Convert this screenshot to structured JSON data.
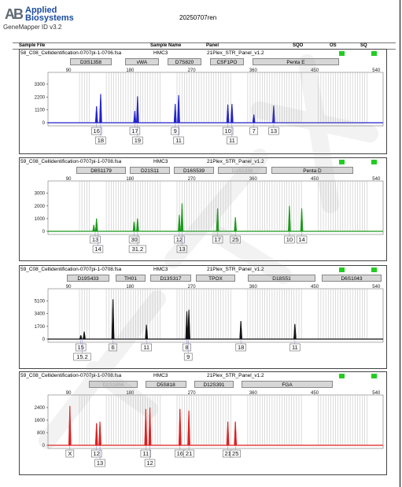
{
  "header": {
    "logo_mark": "AB",
    "logo_line1": "Applied",
    "logo_line2": "Biosystems",
    "app_version": "GeneMapper ID v3.2",
    "run_title": "20250707ren"
  },
  "columns": [
    "Sample File",
    "Sample Name",
    "Panel",
    "SQO",
    "OS",
    "SQ"
  ],
  "colors": {
    "blue": "#2222cc",
    "green": "#1a9a1a",
    "black": "#111111",
    "red": "#dd1f1f",
    "flag": "#22cc22",
    "marker": "#d7d7d7"
  },
  "x_ticks": [
    "90",
    "180",
    "270",
    "360",
    "450",
    "540"
  ],
  "panels": [
    {
      "sample_file": "58_C08_Cellidentification-0707pi-1-0706.fsa",
      "sample_name": "HMC3",
      "panel": "21Plex_STR_Panel_v1.2",
      "dye_color": "#2222cc",
      "markers": [
        {
          "name": "D3S1358",
          "dim": false
        },
        {
          "name": "vWA",
          "dim": false
        },
        {
          "name": "D7S820",
          "dim": false
        },
        {
          "name": "CSF1PO",
          "dim": false
        },
        {
          "name": "Penta E",
          "dim": false
        }
      ],
      "y_ticks": [
        "3300",
        "2200",
        "1100",
        "0"
      ],
      "chart_data": {
        "type": "electropherogram",
        "xlim": [
          60,
          550
        ],
        "ylim": [
          0,
          3900
        ],
        "peaks": [
          {
            "x": 131,
            "y": 1400
          },
          {
            "x": 137,
            "y": 2450
          },
          {
            "x": 187,
            "y": 1000
          },
          {
            "x": 191,
            "y": 2250
          },
          {
            "x": 246,
            "y": 1600
          },
          {
            "x": 251,
            "y": 2350
          },
          {
            "x": 323,
            "y": 1550
          },
          {
            "x": 329,
            "y": 1600
          },
          {
            "x": 361,
            "y": 700
          },
          {
            "x": 390,
            "y": 1450
          }
        ]
      },
      "allele_rows": [
        [
          {
            "label": "16",
            "x": 131
          },
          {
            "label": "17",
            "x": 187
          },
          {
            "label": "9",
            "x": 246
          },
          {
            "label": "10",
            "x": 323
          },
          {
            "label": "7",
            "x": 361
          },
          {
            "label": "13",
            "x": 390
          }
        ],
        [
          {
            "label": "18",
            "x": 137
          },
          {
            "label": "19",
            "x": 191
          },
          {
            "label": "11",
            "x": 251
          },
          {
            "label": "11",
            "x": 329
          }
        ]
      ]
    },
    {
      "sample_file": "59_C08_Cellidentification-0707pi-1-0708.fsa",
      "sample_name": "HMC3",
      "panel": "21Plex_STR_Panel_v1.2",
      "dye_color": "#1a9a1a",
      "markers": [
        {
          "name": "D8S1179",
          "dim": false
        },
        {
          "name": "D21S11",
          "dim": false
        },
        {
          "name": "D16S539",
          "dim": false
        },
        {
          "name": "D2S1338",
          "dim": true
        },
        {
          "name": "Penta D",
          "dim": false
        }
      ],
      "y_ticks": [
        "3000",
        "2000",
        "1000",
        "0"
      ],
      "chart_data": {
        "type": "electropherogram",
        "xlim": [
          60,
          550
        ],
        "ylim": [
          0,
          3600
        ],
        "peaks": [
          {
            "x": 127,
            "y": 500
          },
          {
            "x": 131,
            "y": 1000
          },
          {
            "x": 186,
            "y": 750
          },
          {
            "x": 191,
            "y": 1000
          },
          {
            "x": 252,
            "y": 1300
          },
          {
            "x": 256,
            "y": 2200
          },
          {
            "x": 308,
            "y": 1800
          },
          {
            "x": 334,
            "y": 1100
          },
          {
            "x": 413,
            "y": 2000
          },
          {
            "x": 431,
            "y": 1800
          }
        ]
      },
      "allele_rows": [
        [
          {
            "label": "13",
            "x": 129
          },
          {
            "label": "30",
            "x": 186
          },
          {
            "label": "12",
            "x": 252
          },
          {
            "label": "17",
            "x": 308
          },
          {
            "label": "25",
            "x": 334
          },
          {
            "label": "10",
            "x": 413
          },
          {
            "label": "14",
            "x": 431
          }
        ],
        [
          {
            "label": "14",
            "x": 133
          },
          {
            "label": "31.2",
            "x": 191
          },
          {
            "label": "13",
            "x": 256
          }
        ]
      ]
    },
    {
      "sample_file": "59_C08_Cellidentification-0707pi-1-0708.fsa",
      "sample_name": "HMC3",
      "panel": "21Plex_STR_Panel_v1.2",
      "dye_color": "#111111",
      "markers": [
        {
          "name": "D19S433",
          "dim": false
        },
        {
          "name": "TH01",
          "dim": false
        },
        {
          "name": "D13S317",
          "dim": false
        },
        {
          "name": "TPOX",
          "dim": false
        },
        {
          "name": "D18S51",
          "dim": false
        },
        {
          "name": "D6S1043",
          "dim": false
        }
      ],
      "y_ticks": [
        "5100",
        "3400",
        "1700",
        "0"
      ],
      "chart_data": {
        "type": "electropherogram",
        "xlim": [
          60,
          550
        ],
        "ylim": [
          0,
          6100
        ],
        "peaks": [
          {
            "x": 108,
            "y": 500
          },
          {
            "x": 113,
            "y": 1000
          },
          {
            "x": 155,
            "y": 5300
          },
          {
            "x": 204,
            "y": 1900
          },
          {
            "x": 263,
            "y": 3700
          },
          {
            "x": 266,
            "y": 3900
          },
          {
            "x": 342,
            "y": 2400
          },
          {
            "x": 421,
            "y": 2000
          }
        ]
      },
      "allele_rows": [
        [
          {
            "label": "15",
            "x": 108
          },
          {
            "label": "6",
            "x": 155
          },
          {
            "label": "11",
            "x": 204
          },
          {
            "label": "8",
            "x": 263
          },
          {
            "label": "18",
            "x": 342
          },
          {
            "label": "11",
            "x": 421
          }
        ],
        [
          {
            "label": "15.2",
            "x": 110
          },
          {
            "label": "9",
            "x": 265
          }
        ]
      ]
    },
    {
      "sample_file": "59_C08_Cellidentification-0707pi-1-0708.fsa",
      "sample_name": "HMC3",
      "panel": "21Plex_STR_Panel_v1.2",
      "dye_color": "#dd1f1f",
      "markers": [
        {
          "name": "D1S1656",
          "dim": true
        },
        {
          "name": "D5S818",
          "dim": false
        },
        {
          "name": "D12S391",
          "dim": false
        },
        {
          "name": "FGA",
          "dim": false
        }
      ],
      "y_ticks": [
        "2400",
        "1600",
        "800",
        "0"
      ],
      "chart_data": {
        "type": "electropherogram",
        "xlim": [
          60,
          550
        ],
        "ylim": [
          0,
          2900
        ],
        "peaks": [
          {
            "x": 92,
            "y": 2500
          },
          {
            "x": 131,
            "y": 1400
          },
          {
            "x": 136,
            "y": 1500
          },
          {
            "x": 203,
            "y": 2300
          },
          {
            "x": 209,
            "y": 2400
          },
          {
            "x": 253,
            "y": 2300
          },
          {
            "x": 266,
            "y": 2200
          },
          {
            "x": 323,
            "y": 1500
          },
          {
            "x": 334,
            "y": 1500
          }
        ]
      },
      "allele_rows": [
        [
          {
            "label": "X",
            "x": 92
          },
          {
            "label": "12",
            "x": 131
          },
          {
            "label": "11",
            "x": 203
          },
          {
            "label": "16",
            "x": 253
          },
          {
            "label": "21",
            "x": 266
          },
          {
            "label": "21",
            "x": 323
          },
          {
            "label": "25",
            "x": 334
          }
        ],
        [
          {
            "label": "13",
            "x": 136
          },
          {
            "label": "12",
            "x": 209
          }
        ]
      ]
    }
  ]
}
